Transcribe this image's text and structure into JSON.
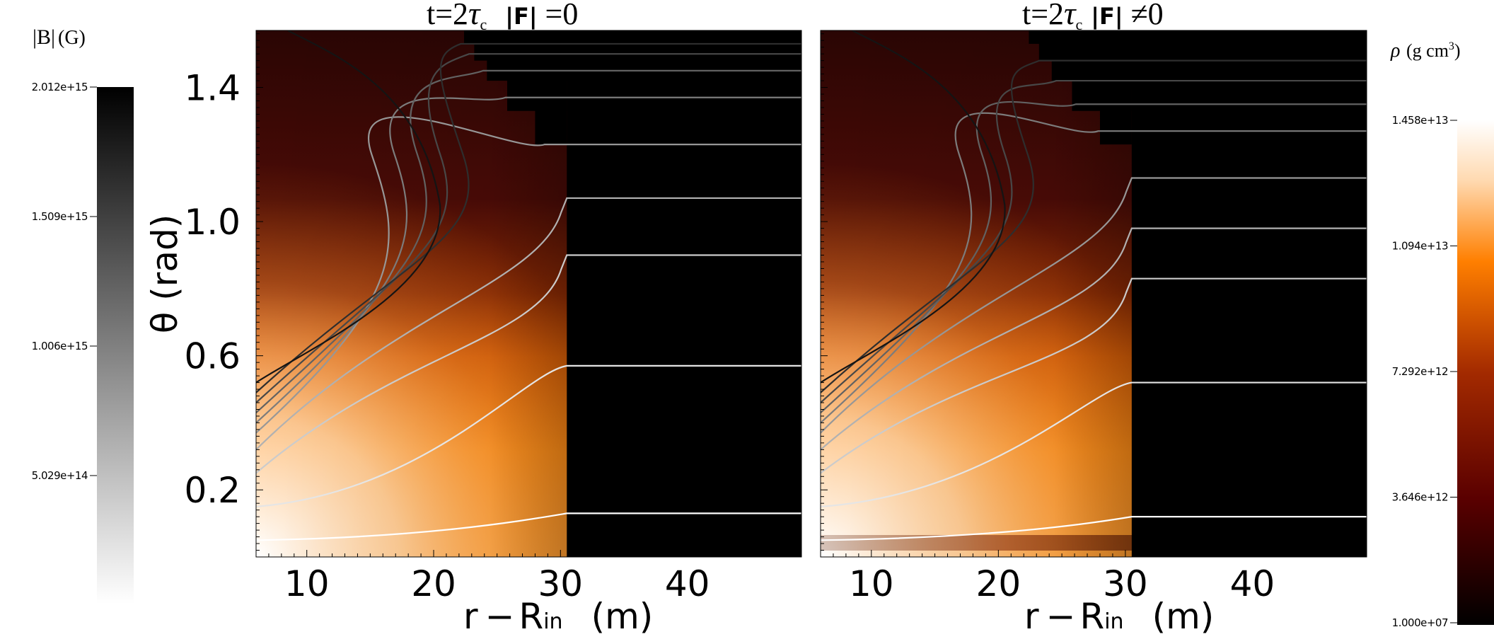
{
  "chart_data": [
    {
      "type": "heatmap",
      "title": "t=2τc  |F| =0",
      "xlabel": "r − Rin  (m)",
      "ylabel": "θ (rad)",
      "x_ticks": [
        "10",
        "20",
        "30",
        "40"
      ],
      "y_ticks": [
        "0.2",
        "0.6",
        "1.0",
        "1.4"
      ],
      "xlim": [
        6,
        49
      ],
      "ylim": [
        0,
        1.57
      ],
      "front_r": 30.5,
      "field_lines": {
        "far_theta": [
          0.13,
          0.57,
          0.9,
          1.07,
          1.23,
          1.37,
          1.45,
          1.5,
          1.53,
          1.555
        ],
        "left_theta": [
          0.05,
          0.15,
          0.25,
          0.32,
          0.37,
          0.4,
          0.43,
          0.46,
          0.49,
          0.52
        ]
      }
    },
    {
      "type": "heatmap",
      "title": "t=2τc |F| ≠0",
      "xlabel": "r − Rin  (m)",
      "ylabel": "",
      "x_ticks": [
        "10",
        "20",
        "30",
        "40"
      ],
      "y_ticks": [],
      "xlim": [
        6,
        49
      ],
      "ylim": [
        0,
        1.57
      ],
      "front_r": 30.5,
      "field_lines": {
        "far_theta": [
          0.12,
          0.52,
          0.83,
          0.98,
          1.13,
          1.27,
          1.35,
          1.42,
          1.48,
          1.51
        ],
        "left_theta": [
          0.05,
          0.15,
          0.25,
          0.32,
          0.37,
          0.4,
          0.43,
          0.46,
          0.49,
          0.52
        ]
      }
    }
  ],
  "colorbars": {
    "B": {
      "label_symbol": "|B|",
      "label_unit": "(G)",
      "ticks": [
        "2.012e+15",
        "1.509e+15",
        "1.006e+15",
        "5.029e+14"
      ],
      "min": 0,
      "max": 2012000000000000.0,
      "colormap": [
        "#ffffff",
        "#000000"
      ]
    },
    "rho": {
      "label_symbol": "ρ",
      "label_unit": "(g cm",
      "label_exp": "3",
      "label_close": ")",
      "ticks": [
        "1.458e+13",
        "1.094e+13",
        "7.292e+12",
        "3.646e+12",
        "1.000e+07"
      ],
      "min": 10000000.0,
      "max": 14580000000000.0,
      "colormap": [
        "#000000",
        "#5a0000",
        "#a32a00",
        "#ff7f00",
        "#ffd9b0",
        "#ffffff"
      ]
    }
  },
  "panel1": {
    "title_pre": "t=2",
    "title_tau": "τ",
    "title_sub": "c",
    "title_F": "|F|",
    "title_post": " =0",
    "ylabel": "θ (rad)",
    "xlabel_r": "r",
    "xlabel_minus": "−",
    "xlabel_R": "R",
    "xlabel_sub": "in",
    "xlabel_unit": "(m)"
  },
  "panel2": {
    "title_pre": "t=2",
    "title_tau": "τ",
    "title_sub": "c",
    "title_F": "|F|",
    "title_post": " ≠0",
    "xlabel_r": "r",
    "xlabel_minus": "−",
    "xlabel_R": "R",
    "xlabel_sub": "in",
    "xlabel_unit": "(m)"
  }
}
